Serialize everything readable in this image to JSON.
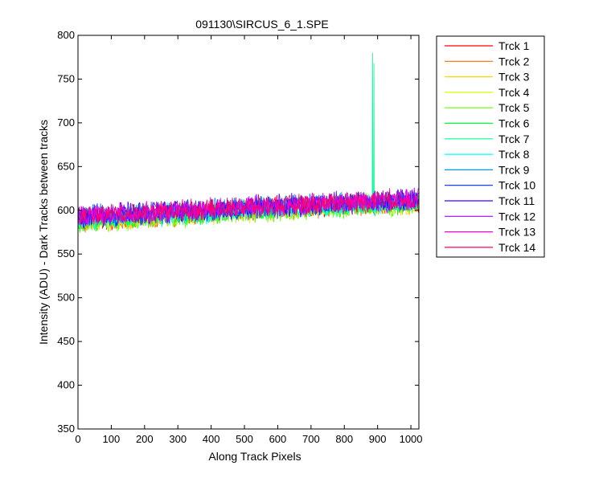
{
  "chart_data": {
    "type": "line",
    "title": "091130\\SIRCUS_6_1.SPE",
    "xlabel": "Along Track Pixels",
    "ylabel": "Intensity (ADU) - Dark Tracks between tracks",
    "xlim": [
      0,
      1024
    ],
    "ylim": [
      350,
      800
    ],
    "xticks": [
      0,
      100,
      200,
      300,
      400,
      500,
      600,
      700,
      800,
      900,
      1000
    ],
    "yticks": [
      350,
      400,
      450,
      500,
      550,
      600,
      650,
      700,
      750,
      800
    ],
    "grid": false,
    "legend_position": "outside-right",
    "series": [
      {
        "name": "Trck 1",
        "color": "#ff0000",
        "values": [
          585,
          590,
          588,
          593,
          592,
          596,
          597,
          599,
          600,
          601,
          603,
          604,
          606,
          607,
          608,
          609,
          610
        ]
      },
      {
        "name": "Trck 2",
        "color": "#ff6a00",
        "values": [
          587,
          589,
          590,
          592,
          593,
          595,
          596,
          597,
          599,
          600,
          602,
          603,
          604,
          606,
          607,
          608,
          609
        ]
      },
      {
        "name": "Trck 3",
        "color": "#ffd400",
        "values": [
          586,
          588,
          589,
          591,
          592,
          593,
          595,
          597,
          598,
          600,
          601,
          603,
          604,
          605,
          606,
          607,
          608
        ]
      },
      {
        "name": "Trck 4",
        "color": "#d4ff00",
        "values": [
          590,
          592,
          593,
          594,
          596,
          597,
          598,
          600,
          601,
          602,
          603,
          605,
          606,
          607,
          608,
          609,
          610
        ]
      },
      {
        "name": "Trck 5",
        "color": "#6aff00",
        "values": [
          584,
          586,
          588,
          590,
          591,
          592,
          594,
          596,
          597,
          598,
          600,
          601,
          603,
          604,
          605,
          606,
          607
        ]
      },
      {
        "name": "Trck 6",
        "color": "#00ff2a",
        "values": [
          588,
          590,
          591,
          592,
          594,
          595,
          597,
          598,
          599,
          601,
          602,
          603,
          605,
          606,
          607,
          608,
          609
        ]
      },
      {
        "name": "Trck 7",
        "color": "#00ff95",
        "values": [
          591,
          592,
          594,
          595,
          596,
          598,
          599,
          600,
          602,
          603,
          604,
          605,
          607,
          608,
          609,
          610,
          611
        ]
      },
      {
        "name": "Trck 8",
        "color": "#00ffff",
        "values": [
          589,
          591,
          592,
          593,
          595,
          596,
          597,
          599,
          600,
          601,
          603,
          604,
          605,
          607,
          608,
          609,
          610
        ]
      },
      {
        "name": "Trck 9",
        "color": "#0095ff",
        "values": [
          593,
          594,
          596,
          597,
          598,
          599,
          601,
          602,
          603,
          604,
          606,
          607,
          608,
          609,
          610,
          611,
          612
        ]
      },
      {
        "name": "Trck 10",
        "color": "#002aff",
        "values": [
          592,
          593,
          595,
          596,
          597,
          599,
          600,
          601,
          602,
          604,
          605,
          606,
          607,
          609,
          610,
          611,
          612
        ]
      },
      {
        "name": "Trck 11",
        "color": "#4000ff",
        "values": [
          594,
          595,
          597,
          598,
          599,
          600,
          602,
          603,
          604,
          605,
          607,
          608,
          609,
          610,
          611,
          612,
          613
        ]
      },
      {
        "name": "Trck 12",
        "color": "#aa00ff",
        "values": [
          592,
          594,
          595,
          596,
          598,
          599,
          600,
          601,
          603,
          604,
          605,
          606,
          608,
          609,
          610,
          611,
          612
        ]
      },
      {
        "name": "Trck 13",
        "color": "#ff00d4",
        "values": [
          593,
          595,
          596,
          597,
          598,
          600,
          601,
          602,
          603,
          605,
          606,
          607,
          608,
          609,
          611,
          612,
          613
        ]
      },
      {
        "name": "Trck 14",
        "color": "#ff006a",
        "values": [
          594,
          595,
          596,
          598,
          599,
          600,
          601,
          602,
          604,
          605,
          606,
          607,
          609,
          610,
          611,
          612,
          613
        ]
      }
    ],
    "x": [
      0,
      64,
      128,
      192,
      256,
      320,
      384,
      448,
      512,
      576,
      640,
      704,
      768,
      832,
      896,
      960,
      1023
    ],
    "noise_amplitude": 12,
    "annotations": [
      {
        "series": "Trck 7",
        "x": 885,
        "y": 780
      },
      {
        "series": "Trck 7",
        "x": 889,
        "y": 768
      }
    ]
  }
}
